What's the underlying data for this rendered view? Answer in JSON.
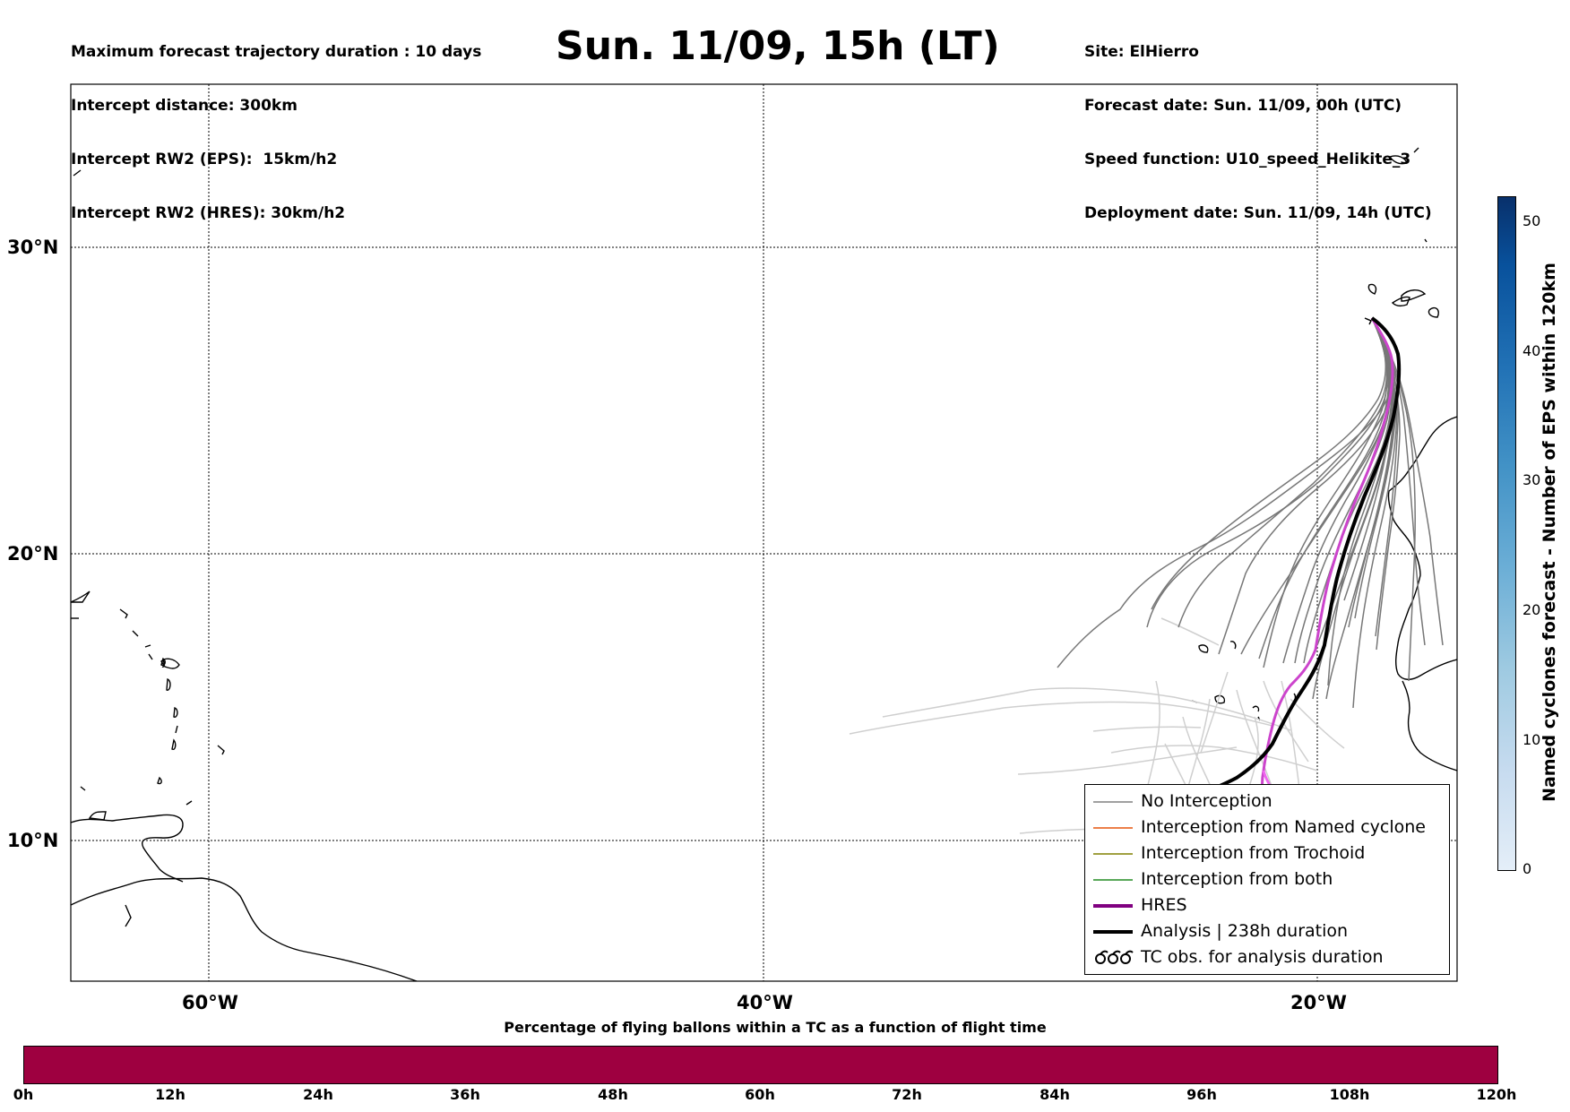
{
  "header": {
    "left_lines": [
      "Maximum forecast trajectory duration : 10 days",
      "Intercept distance: 300km",
      "Intercept RW2 (EPS):  15km/h2",
      "Intercept RW2 (HRES): 30km/h2"
    ],
    "title": "Sun. 11/09, 15h (LT)",
    "right_lines": [
      "Site: ElHierro",
      "Forecast date: Sun. 11/09, 00h (UTC)",
      "Speed function: U10_speed_Helikite_3",
      "Deployment date: Sun. 11/09, 14h (UTC)"
    ]
  },
  "map": {
    "lat_labels": [
      "30°N",
      "20°N",
      "10°N"
    ],
    "lon_labels": [
      "60°W",
      "40°W",
      "20°W"
    ]
  },
  "legend": {
    "items": [
      {
        "label": "No Interception",
        "color": "#808080"
      },
      {
        "label": "Interception from Named cyclone",
        "color": "#e6550d"
      },
      {
        "label": "Interception from Trochoid",
        "color": "#808000"
      },
      {
        "label": "Interception from both",
        "color": "#228b22"
      },
      {
        "label": "HRES",
        "color": "#800080"
      },
      {
        "label": "Analysis | 238h duration",
        "color": "#000000"
      },
      {
        "label": "TC obs. for analysis duration",
        "color": "#000000"
      }
    ]
  },
  "colorbar_vertical": {
    "label": "Named cyclones forecast - Number of EPS within 120km",
    "ticks": [
      "0",
      "10",
      "20",
      "30",
      "40",
      "50"
    ]
  },
  "colorbar_horizontal": {
    "title": "Percentage of flying ballons within a TC as a function of flight time",
    "ticks": [
      "0h",
      "12h",
      "24h",
      "36h",
      "48h",
      "60h",
      "72h",
      "84h",
      "96h",
      "108h",
      "120h"
    ],
    "color": "#9e0040"
  }
}
